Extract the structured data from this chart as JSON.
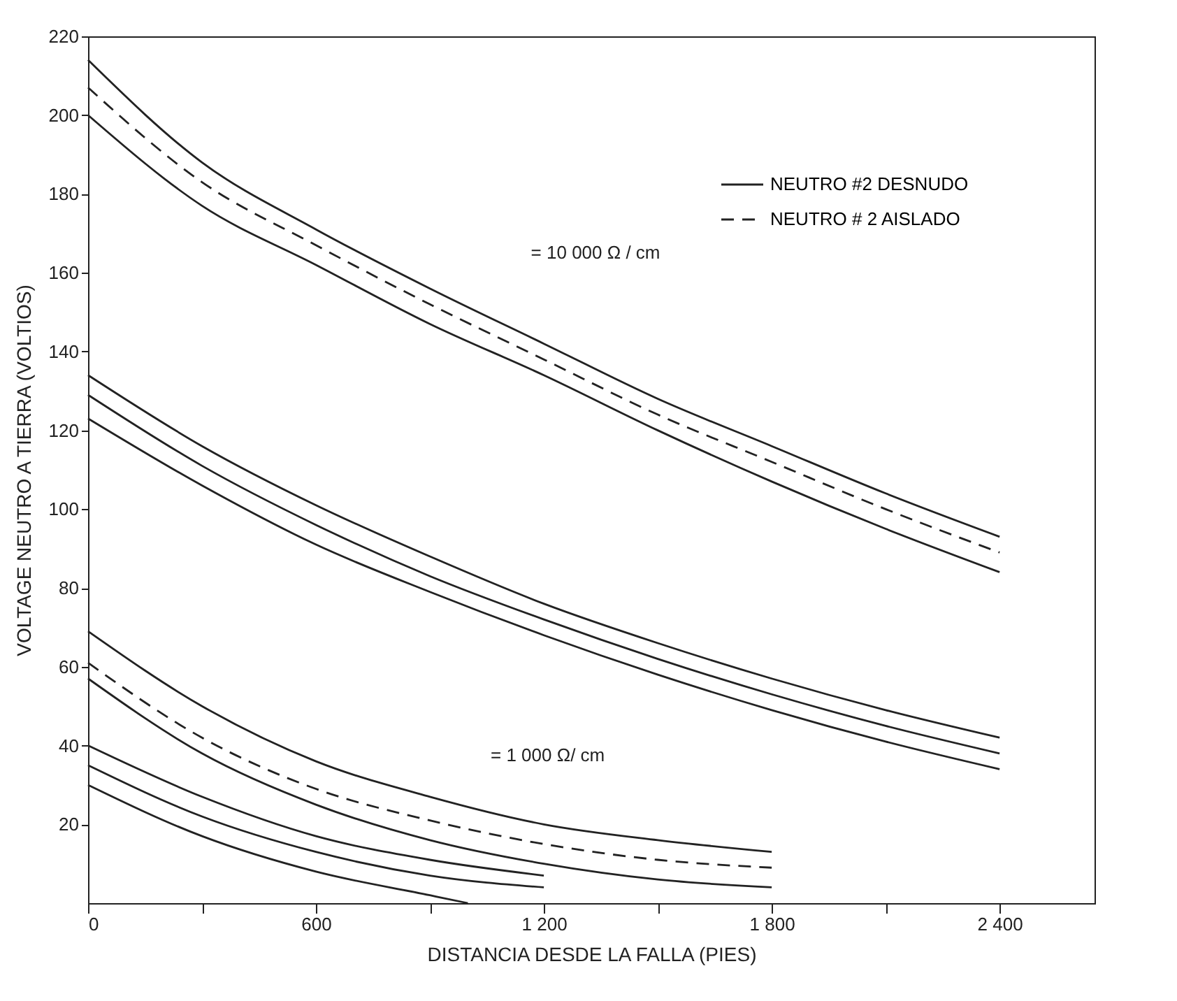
{
  "chart_data": {
    "type": "line",
    "xlabel": "DISTANCIA DESDE LA FALLA (PIES)",
    "ylabel": "VOLTAGE NEUTRO A TIERRA (VOLTIOS)",
    "xlim": [
      0,
      2650
    ],
    "ylim": [
      0,
      220
    ],
    "xticks": [
      0,
      {
        "value": 300,
        "label": null
      },
      600,
      {
        "value": 900,
        "label": null
      },
      {
        "value": 1200,
        "label": "1 200"
      },
      {
        "value": 1500,
        "label": null
      },
      {
        "value": 1800,
        "label": "1 800"
      },
      {
        "value": 2100,
        "label": null
      },
      {
        "value": 2400,
        "label": "2 400"
      }
    ],
    "yticks": [
      20,
      40,
      60,
      80,
      100,
      120,
      140,
      160,
      180,
      200,
      220
    ],
    "grid": false,
    "legend": "top right",
    "marker": "none",
    "annotations": [
      "= 10 000 Ω / cm",
      "= 1 000 Ω/ cm"
    ],
    "series": [
      {
        "name": "NEUTRO #2 DESNUDO",
        "color": "#222222",
        "line_style": "solid",
        "x": [
          0,
          300,
          600,
          900,
          1200,
          1500,
          1800,
          2100,
          2400
        ],
        "values": [
          214,
          188,
          171,
          156,
          142,
          128,
          116,
          104,
          93
        ]
      },
      {
        "name": "NEUTRO # 2 AISLADO",
        "color": "#222222",
        "line_style": "dashed",
        "x": [
          0,
          300,
          600,
          900,
          1200,
          1500,
          1800,
          2100,
          2400
        ],
        "values": [
          207,
          183,
          167,
          152,
          138,
          124,
          112,
          100,
          89
        ]
      },
      {
        "color": "#222222",
        "line_style": "solid",
        "x": [
          0,
          300,
          600,
          900,
          1200,
          1500,
          1800,
          2100,
          2400
        ],
        "values": [
          200,
          177,
          162,
          147,
          134,
          120,
          107,
          95,
          84
        ]
      },
      {
        "color": "#222222",
        "line_style": "solid",
        "x": [
          0,
          300,
          600,
          900,
          1200,
          1500,
          1800,
          2100,
          2400
        ],
        "values": [
          134,
          116,
          101,
          88,
          76,
          66,
          57,
          49,
          42
        ]
      },
      {
        "color": "#222222",
        "line_style": "solid",
        "x": [
          0,
          300,
          600,
          900,
          1200,
          1500,
          1800,
          2100,
          2400
        ],
        "values": [
          129,
          111,
          96,
          83,
          72,
          62,
          53,
          45,
          38
        ]
      },
      {
        "color": "#222222",
        "line_style": "solid",
        "x": [
          0,
          300,
          600,
          900,
          1200,
          1500,
          1800,
          2100,
          2400
        ],
        "values": [
          123,
          106,
          91,
          79,
          68,
          58,
          49,
          41,
          34
        ]
      },
      {
        "color": "#222222",
        "line_style": "solid",
        "x": [
          0,
          300,
          600,
          900,
          1200,
          1500,
          1800
        ],
        "values": [
          69,
          50,
          36,
          27,
          20,
          16,
          13
        ]
      },
      {
        "color": "#222222",
        "line_style": "dashed",
        "x": [
          0,
          300,
          600,
          900,
          1200,
          1500,
          1800
        ],
        "values": [
          61,
          42,
          29,
          21,
          15,
          11,
          9
        ]
      },
      {
        "color": "#222222",
        "line_style": "solid",
        "x": [
          0,
          300,
          600,
          900,
          1200,
          1500,
          1800
        ],
        "values": [
          57,
          38,
          25,
          16,
          10,
          6,
          4
        ]
      },
      {
        "color": "#222222",
        "line_style": "solid",
        "x": [
          0,
          300,
          600,
          900,
          1200
        ],
        "values": [
          40,
          27,
          17,
          11,
          7
        ]
      },
      {
        "color": "#222222",
        "line_style": "solid",
        "x": [
          0,
          300,
          600,
          900,
          1200
        ],
        "values": [
          35,
          22,
          13,
          7,
          4
        ]
      },
      {
        "color": "#222222",
        "line_style": "solid",
        "x": [
          0,
          300,
          600,
          900,
          1000
        ],
        "values": [
          30,
          17,
          8,
          2,
          0
        ]
      }
    ]
  }
}
